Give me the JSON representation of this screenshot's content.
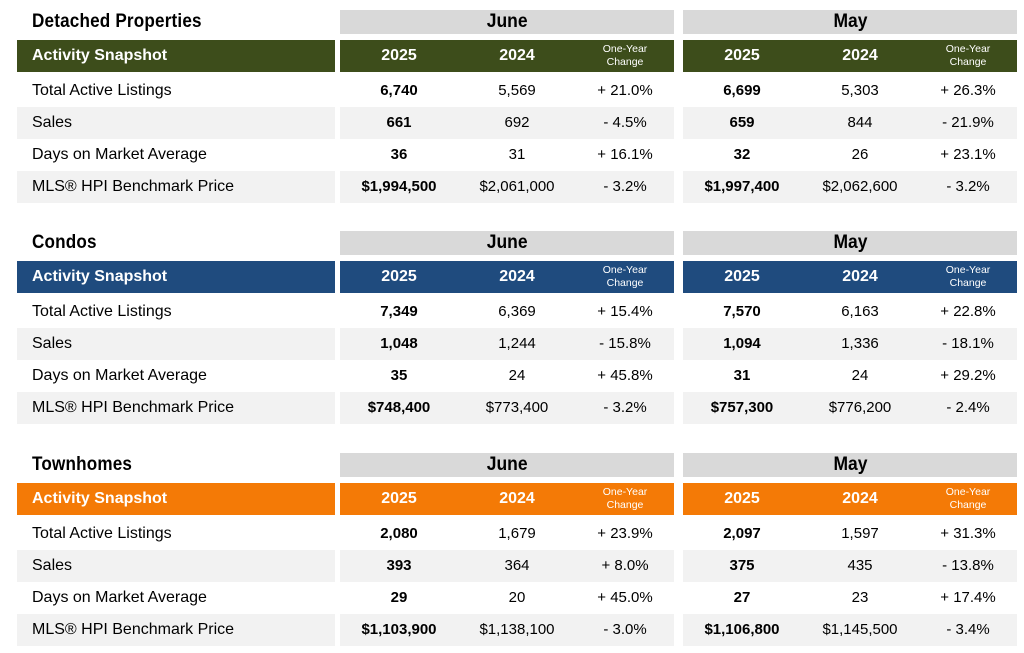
{
  "sections": [
    {
      "title": "Detached Properties",
      "color": "#3d4d1b",
      "header_label": "Activity Snapshot",
      "months": [
        {
          "name": "June",
          "year1": "2025",
          "year2": "2024",
          "change_label_1": "One-Year",
          "change_label_2": "Change"
        },
        {
          "name": "May",
          "year1": "2025",
          "year2": "2024",
          "change_label_1": "One-Year",
          "change_label_2": "Change"
        }
      ],
      "rows": [
        {
          "label": "Total Active Listings",
          "june": [
            "6,740",
            "5,569",
            "+ 21.0%"
          ],
          "may": [
            "6,699",
            "5,303",
            "+ 26.3%"
          ]
        },
        {
          "label": "Sales",
          "june": [
            "661",
            "692",
            "- 4.5%"
          ],
          "may": [
            "659",
            "844",
            "- 21.9%"
          ]
        },
        {
          "label": "Days on Market Average",
          "june": [
            "36",
            "31",
            "+ 16.1%"
          ],
          "may": [
            "32",
            "26",
            "+ 23.1%"
          ]
        },
        {
          "label": "MLS® HPI Benchmark Price",
          "june": [
            "$1,994,500",
            "$2,061,000",
            "- 3.2%"
          ],
          "may": [
            "$1,997,400",
            "$2,062,600",
            "- 3.2%"
          ]
        }
      ]
    },
    {
      "title": "Condos",
      "color": "#1f4b7e",
      "header_label": "Activity Snapshot",
      "months": [
        {
          "name": "June",
          "year1": "2025",
          "year2": "2024",
          "change_label_1": "One-Year",
          "change_label_2": "Change"
        },
        {
          "name": "May",
          "year1": "2025",
          "year2": "2024",
          "change_label_1": "One-Year",
          "change_label_2": "Change"
        }
      ],
      "rows": [
        {
          "label": "Total Active Listings",
          "june": [
            "7,349",
            "6,369",
            "+ 15.4%"
          ],
          "may": [
            "7,570",
            "6,163",
            "+ 22.8%"
          ]
        },
        {
          "label": "Sales",
          "june": [
            "1,048",
            "1,244",
            "- 15.8%"
          ],
          "may": [
            "1,094",
            "1,336",
            "- 18.1%"
          ]
        },
        {
          "label": "Days on Market Average",
          "june": [
            "35",
            "24",
            "+ 45.8%"
          ],
          "may": [
            "31",
            "24",
            "+ 29.2%"
          ]
        },
        {
          "label": "MLS® HPI Benchmark Price",
          "june": [
            "$748,400",
            "$773,400",
            "- 3.2%"
          ],
          "may": [
            "$757,300",
            "$776,200",
            "- 2.4%"
          ]
        }
      ]
    },
    {
      "title": "Townhomes",
      "color": "#f47a06",
      "header_label": "Activity Snapshot",
      "months": [
        {
          "name": "June",
          "year1": "2025",
          "year2": "2024",
          "change_label_1": "One-Year",
          "change_label_2": "Change"
        },
        {
          "name": "May",
          "year1": "2025",
          "year2": "2024",
          "change_label_1": "One-Year",
          "change_label_2": "Change"
        }
      ],
      "rows": [
        {
          "label": "Total Active Listings",
          "june": [
            "2,080",
            "1,679",
            "+ 23.9%"
          ],
          "may": [
            "2,097",
            "1,597",
            "+ 31.3%"
          ]
        },
        {
          "label": "Sales",
          "june": [
            "393",
            "364",
            "+ 8.0%"
          ],
          "may": [
            "375",
            "435",
            "- 13.8%"
          ]
        },
        {
          "label": "Days on Market Average",
          "june": [
            "29",
            "20",
            "+ 45.0%"
          ],
          "may": [
            "27",
            "23",
            "+ 17.4%"
          ]
        },
        {
          "label": "MLS® HPI Benchmark Price",
          "june": [
            "$1,103,900",
            "$1,138,100",
            "- 3.0%"
          ],
          "may": [
            "$1,106,800",
            "$1,145,500",
            "- 3.4%"
          ]
        }
      ]
    }
  ]
}
